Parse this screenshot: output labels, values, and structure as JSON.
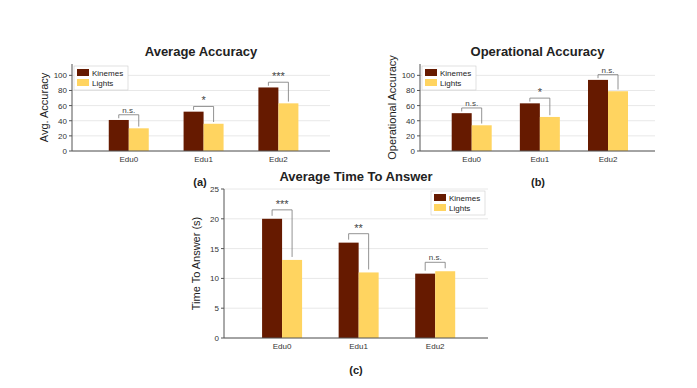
{
  "chart_data": [
    {
      "type": "bar",
      "title": "Average Accuracy",
      "y_label": "Avg. Accuracy",
      "caption": "(a)",
      "categories": [
        "Edu0",
        "Edu1",
        "Edu2"
      ],
      "series": [
        {
          "name": "Kinemes",
          "color": "#661a00",
          "values": [
            41,
            52,
            84
          ]
        },
        {
          "name": "Lights",
          "color": "#ffd460",
          "values": [
            30,
            36,
            63
          ]
        }
      ],
      "annotations": [
        "n.s.",
        "*",
        "***"
      ],
      "ylim": [
        0,
        115
      ],
      "yticks": [
        0,
        20,
        40,
        60,
        80,
        100
      ],
      "grid": true,
      "legend": "upper left"
    },
    {
      "type": "bar",
      "title": "Operational Accuracy",
      "y_label": "Operational Accuracy",
      "caption": "(b)",
      "categories": [
        "Edu0",
        "Edu1",
        "Edu2"
      ],
      "series": [
        {
          "name": "Kinemes",
          "color": "#661a00",
          "values": [
            50,
            63,
            94
          ]
        },
        {
          "name": "Lights",
          "color": "#ffd460",
          "values": [
            34,
            45,
            79
          ]
        }
      ],
      "annotations": [
        "n.s.",
        "*",
        "n.s."
      ],
      "ylim": [
        0,
        115
      ],
      "yticks": [
        0,
        20,
        40,
        60,
        80,
        100
      ],
      "grid": true,
      "legend": "upper left"
    },
    {
      "type": "bar",
      "title": "Average Time To Answer",
      "y_label": "Time To Answer (s)",
      "caption": "(c)",
      "categories": [
        "Edu0",
        "Edu1",
        "Edu2"
      ],
      "series": [
        {
          "name": "Kinemes",
          "color": "#661a00",
          "values": [
            20,
            16,
            10.8
          ]
        },
        {
          "name": "Lights",
          "color": "#ffd460",
          "values": [
            13.1,
            11,
            11.2
          ]
        }
      ],
      "annotations": [
        "***",
        "**",
        "n.s."
      ],
      "ylim": [
        0,
        25
      ],
      "yticks": [
        0,
        5,
        10,
        15,
        20,
        25
      ],
      "grid": true,
      "legend": "upper right"
    }
  ]
}
